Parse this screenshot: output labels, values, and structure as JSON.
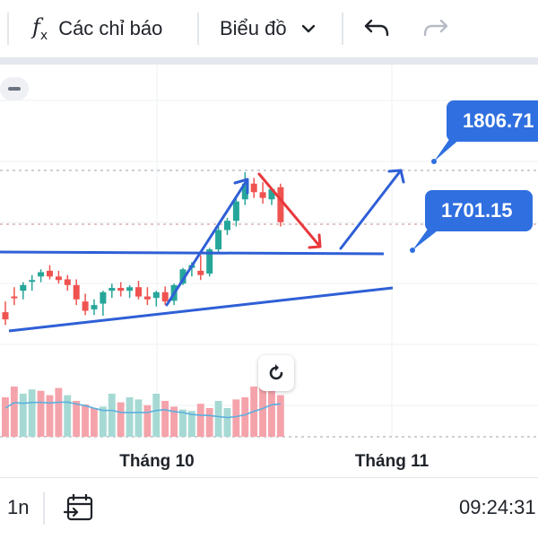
{
  "toolbar": {
    "indicators_label": "Các chỉ báo",
    "chart_label": "Biểu đồ",
    "fx_icon_label": "f"
  },
  "chart_data": {
    "type": "candlestick",
    "x_labels": [
      "Tháng 10",
      "Tháng 11"
    ],
    "price_labels": [
      "1806.71",
      "1701.15"
    ],
    "candles": [
      {
        "o": 1610,
        "h": 1625,
        "l": 1592,
        "c": 1600
      },
      {
        "o": 1632,
        "h": 1645,
        "l": 1620,
        "c": 1630
      },
      {
        "o": 1640,
        "h": 1652,
        "l": 1628,
        "c": 1648
      },
      {
        "o": 1653,
        "h": 1662,
        "l": 1640,
        "c": 1655
      },
      {
        "o": 1660,
        "h": 1670,
        "l": 1652,
        "c": 1666
      },
      {
        "o": 1668,
        "h": 1676,
        "l": 1656,
        "c": 1660
      },
      {
        "o": 1660,
        "h": 1668,
        "l": 1650,
        "c": 1655
      },
      {
        "o": 1656,
        "h": 1662,
        "l": 1640,
        "c": 1648
      },
      {
        "o": 1648,
        "h": 1656,
        "l": 1620,
        "c": 1628
      },
      {
        "o": 1625,
        "h": 1636,
        "l": 1606,
        "c": 1612
      },
      {
        "o": 1614,
        "h": 1628,
        "l": 1606,
        "c": 1620
      },
      {
        "o": 1622,
        "h": 1640,
        "l": 1605,
        "c": 1638
      },
      {
        "o": 1640,
        "h": 1650,
        "l": 1630,
        "c": 1644
      },
      {
        "o": 1644,
        "h": 1652,
        "l": 1632,
        "c": 1640
      },
      {
        "o": 1640,
        "h": 1648,
        "l": 1630,
        "c": 1645
      },
      {
        "o": 1645,
        "h": 1654,
        "l": 1628,
        "c": 1632
      },
      {
        "o": 1632,
        "h": 1645,
        "l": 1620,
        "c": 1628
      },
      {
        "o": 1630,
        "h": 1640,
        "l": 1618,
        "c": 1638
      },
      {
        "o": 1638,
        "h": 1646,
        "l": 1620,
        "c": 1625
      },
      {
        "o": 1626,
        "h": 1650,
        "l": 1620,
        "c": 1648
      },
      {
        "o": 1650,
        "h": 1672,
        "l": 1648,
        "c": 1670
      },
      {
        "o": 1672,
        "h": 1680,
        "l": 1660,
        "c": 1676
      },
      {
        "o": 1668,
        "h": 1690,
        "l": 1655,
        "c": 1662
      },
      {
        "o": 1664,
        "h": 1700,
        "l": 1660,
        "c": 1698
      },
      {
        "o": 1698,
        "h": 1730,
        "l": 1694,
        "c": 1725
      },
      {
        "o": 1725,
        "h": 1742,
        "l": 1718,
        "c": 1738
      },
      {
        "o": 1738,
        "h": 1770,
        "l": 1730,
        "c": 1765
      },
      {
        "o": 1768,
        "h": 1806,
        "l": 1760,
        "c": 1790
      },
      {
        "o": 1790,
        "h": 1798,
        "l": 1770,
        "c": 1778
      },
      {
        "o": 1778,
        "h": 1792,
        "l": 1762,
        "c": 1770
      },
      {
        "o": 1768,
        "h": 1784,
        "l": 1760,
        "c": 1782
      },
      {
        "o": 1785,
        "h": 1790,
        "l": 1730,
        "c": 1736
      }
    ],
    "volume": [
      {
        "v": 55,
        "up": false
      },
      {
        "v": 70,
        "up": false
      },
      {
        "v": 60,
        "up": true
      },
      {
        "v": 66,
        "up": true
      },
      {
        "v": 64,
        "up": false
      },
      {
        "v": 58,
        "up": false
      },
      {
        "v": 68,
        "up": false
      },
      {
        "v": 58,
        "up": true
      },
      {
        "v": 50,
        "up": false
      },
      {
        "v": 45,
        "up": false
      },
      {
        "v": 40,
        "up": false
      },
      {
        "v": 42,
        "up": true
      },
      {
        "v": 60,
        "up": true
      },
      {
        "v": 48,
        "up": false
      },
      {
        "v": 55,
        "up": true
      },
      {
        "v": 52,
        "up": true
      },
      {
        "v": 44,
        "up": false
      },
      {
        "v": 60,
        "up": true
      },
      {
        "v": 50,
        "up": false
      },
      {
        "v": 42,
        "up": false
      },
      {
        "v": 38,
        "up": true
      },
      {
        "v": 36,
        "up": true
      },
      {
        "v": 46,
        "up": false
      },
      {
        "v": 40,
        "up": false
      },
      {
        "v": 50,
        "up": true
      },
      {
        "v": 40,
        "up": true
      },
      {
        "v": 52,
        "up": false
      },
      {
        "v": 55,
        "up": false
      },
      {
        "v": 70,
        "up": false
      },
      {
        "v": 74,
        "up": false
      },
      {
        "v": 76,
        "up": false
      },
      {
        "v": 58,
        "up": false
      }
    ],
    "colors": {
      "up": "#26a69a",
      "down": "#ef5350",
      "vol_up": "#a6d9d4",
      "vol_down": "#f5a3ab",
      "drawing_blue": "#2f5fd6",
      "drawing_red": "#e8383b",
      "ma": "#5bb0de"
    }
  },
  "bottom": {
    "interval": "1n",
    "time": "09:24:31"
  }
}
